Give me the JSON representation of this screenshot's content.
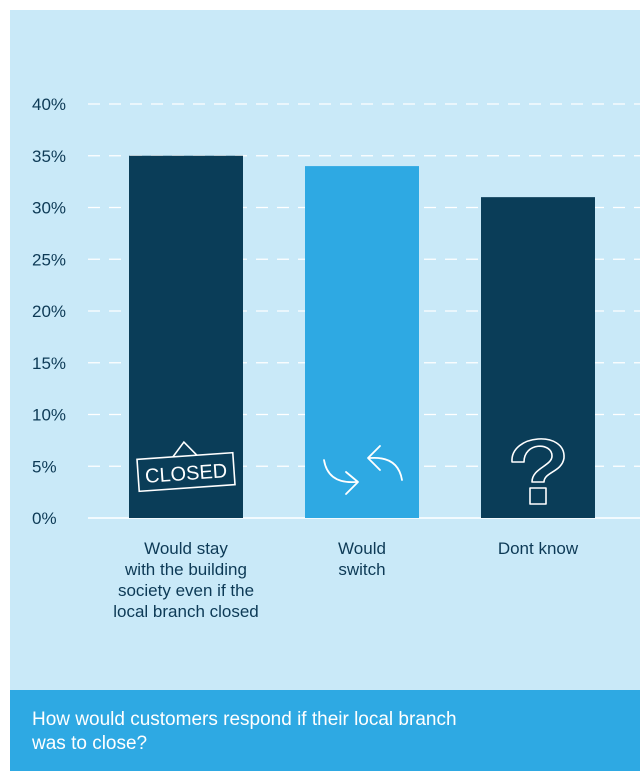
{
  "chart_data": {
    "type": "bar",
    "categories": [
      "Would stay with the building society even if the local branch closed",
      "Would switch",
      "Dont know"
    ],
    "category_lines": [
      [
        "Would stay",
        "with the building",
        "society even if the",
        "local branch closed"
      ],
      [
        "Would",
        "switch"
      ],
      [
        "Dont know"
      ]
    ],
    "values": [
      35,
      34,
      31
    ],
    "colors": [
      "#0a3d58",
      "#2ea9e3",
      "#0a3d58"
    ],
    "icons": [
      "closed-sign-icon",
      "switch-arrows-icon",
      "question-mark-icon"
    ],
    "closed_sign_text": "CLOSED",
    "ylim": [
      0,
      40
    ],
    "yticks": [
      "0%",
      "5%",
      "10%",
      "15%",
      "20%",
      "25%",
      "30%",
      "35%",
      "40%"
    ],
    "grid": true,
    "grid_style": "dashed",
    "title": "",
    "xlabel": "",
    "ylabel": ""
  },
  "caption": "How would customers respond if their local branch was to close?",
  "colors": {
    "background": "#c9e9f8",
    "dark_bar": "#0a3d58",
    "light_bar": "#2ea9e3",
    "caption_bar": "#2ea9e3",
    "grid": "#ffffff",
    "text": "#0d3a56"
  }
}
